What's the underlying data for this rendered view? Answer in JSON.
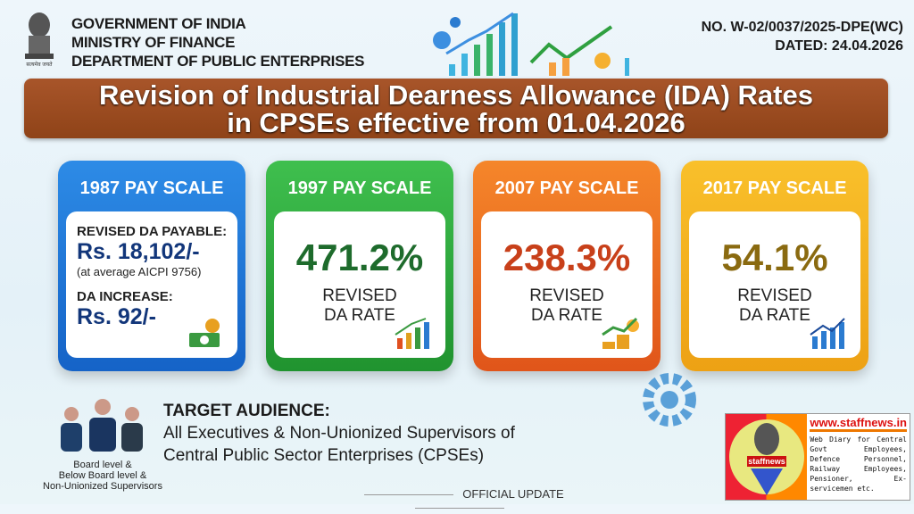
{
  "header": {
    "org_lines": [
      "GOVERNMENT OF INDIA",
      "MINISTRY OF FINANCE",
      "DEPARTMENT OF PUBLIC ENTERPRISES"
    ],
    "ref_no": "NO. W-02/0037/2025-DPE(WC)",
    "dated": "DATED: 24.04.2026"
  },
  "title": {
    "line1": "Revision of Industrial Dearness Allowance (IDA) Rates",
    "line2": "in CPSEs effective from 01.04.2026"
  },
  "cards": [
    {
      "header": "1987 PAY SCALE",
      "payable_label": "REVISED DA PAYABLE:",
      "payable_value": "Rs. 18,102/-",
      "note": "(at average AICPI 9756)",
      "increase_label": "DA INCREASE:",
      "increase_value": "Rs. 92/-",
      "color": "#1e74d6"
    },
    {
      "header": "1997 PAY SCALE",
      "value": "471.2%",
      "label1": "REVISED",
      "label2": "DA RATE",
      "color": "#1e6b2c"
    },
    {
      "header": "2007 PAY SCALE",
      "value": "238.3%",
      "label1": "REVISED",
      "label2": "DA RATE",
      "color": "#c8401a"
    },
    {
      "header": "2017 PAY SCALE",
      "value": "54.1%",
      "label1": "REVISED",
      "label2": "DA RATE",
      "color": "#8a6a10"
    }
  ],
  "audience": {
    "heading": "TARGET AUDIENCE:",
    "line1": "All Executives & Non-Unionized Supervisors of",
    "line2": "Central Public Sector Enterprises (CPSEs)",
    "people_label": [
      "Board level &",
      "Below Board level &",
      "Non-Unionized Supervisors"
    ]
  },
  "footer": {
    "official": "OFFICIAL UPDATE"
  },
  "logo": {
    "name": "staffnews",
    "url": "www.staffnews.in",
    "desc": "Web Diary for Central Govt Employees, Defence Personnel, Railway Employees, Pensioner, Ex-servicemen etc."
  }
}
